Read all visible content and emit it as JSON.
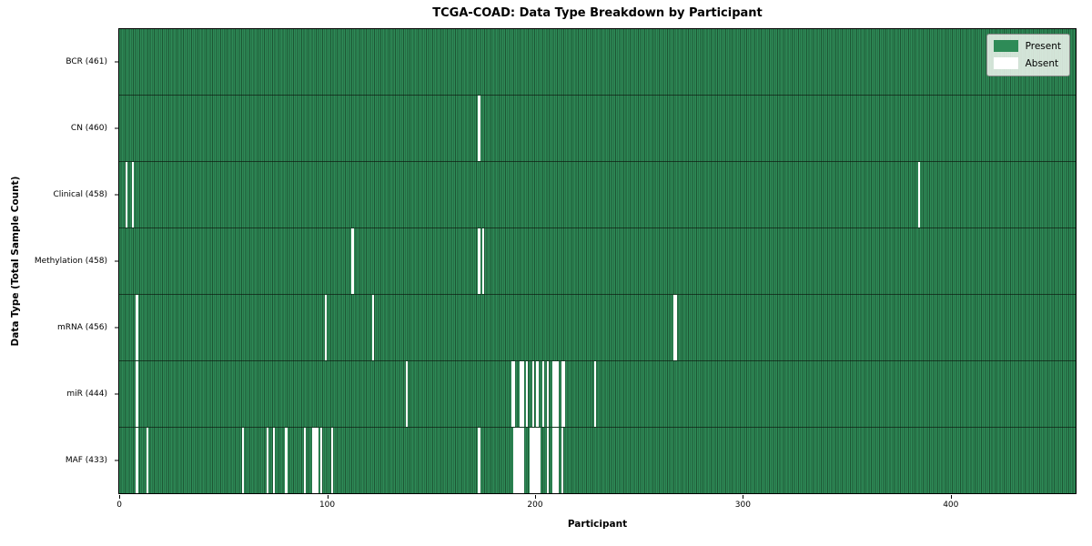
{
  "figure": {
    "title": "TCGA-COAD: Data Type Breakdown by Participant",
    "xlabel": "Participant",
    "ylabel": "Data Type (Total Sample Count)"
  },
  "chart_data": {
    "type": "heatmap",
    "title": "TCGA-COAD: Data Type Breakdown by Participant",
    "xlabel": "Participant",
    "ylabel": "Data Type (Total Sample Count)",
    "n_participants": 461,
    "xlim": [
      -0.5,
      460.5
    ],
    "x_ticks": [
      0,
      100,
      200,
      300,
      400
    ],
    "grid": false,
    "legend_position": "upper right",
    "colors": {
      "present": "#2e8b57",
      "present_cell_edge": "#1d5634",
      "absent": "#ffffff",
      "row_divider": "rgba(10,20,12,0.65)",
      "axis": "#000000"
    },
    "legend": [
      {
        "label": "Present",
        "color": "#2e8b57"
      },
      {
        "label": "Absent",
        "color": "#ffffff"
      }
    ],
    "rows": [
      {
        "label": "BCR (461)",
        "data_type": "BCR",
        "present_count": 461,
        "absent_participants": []
      },
      {
        "label": "CN (460)",
        "data_type": "CN",
        "present_count": 460,
        "absent_participants": [
          173
        ]
      },
      {
        "label": "Clinical (458)",
        "data_type": "Clinical",
        "present_count": 458,
        "absent_participants": [
          3,
          6,
          385
        ]
      },
      {
        "label": "Methylation (458)",
        "data_type": "Methylation",
        "present_count": 458,
        "absent_participants": [
          112,
          173,
          175
        ]
      },
      {
        "label": "mRNA (456)",
        "data_type": "mRNA",
        "present_count": 456,
        "absent_participants": [
          8,
          99,
          122,
          267,
          268
        ]
      },
      {
        "label": "miR (444)",
        "data_type": "miR",
        "present_count": 444,
        "absent_participants": [
          8,
          138,
          189,
          190,
          193,
          194,
          196,
          199,
          201,
          204,
          206,
          209,
          210,
          211,
          213,
          214,
          229
        ]
      },
      {
        "label": "MAF (433)",
        "data_type": "MAF",
        "present_count": 433,
        "absent_participants": [
          8,
          13,
          59,
          71,
          74,
          80,
          89,
          93,
          94,
          95,
          97,
          102,
          173,
          190,
          191,
          192,
          193,
          194,
          198,
          199,
          200,
          201,
          202,
          206,
          209,
          210,
          211,
          213
        ]
      }
    ]
  }
}
